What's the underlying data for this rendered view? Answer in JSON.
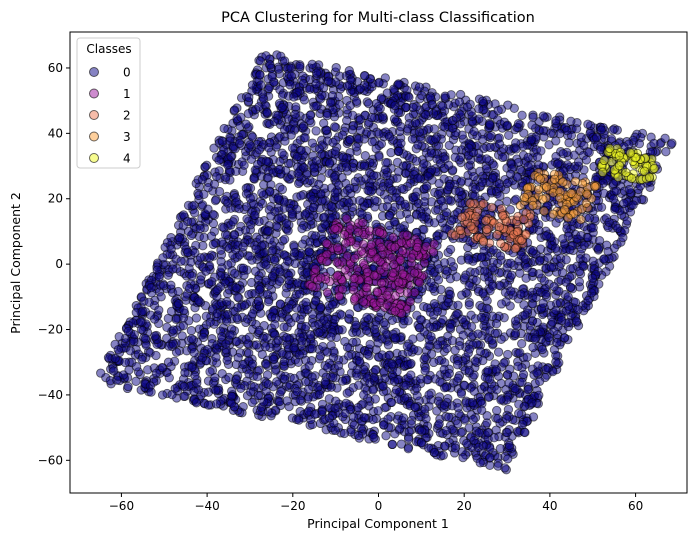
{
  "chart_data": {
    "type": "scatter",
    "title": "PCA Clustering for Multi-class Classification",
    "xlabel": "Principal Component 1",
    "ylabel": "Principal Component 2",
    "xlim": [
      -72,
      72
    ],
    "ylim": [
      -70,
      71
    ],
    "xticks": [
      -60,
      -40,
      -20,
      0,
      20,
      40,
      60
    ],
    "yticks": [
      -60,
      -40,
      -20,
      0,
      20,
      40,
      60
    ],
    "grid": false,
    "legend": {
      "title": "Classes",
      "placement": "top-left"
    },
    "marker_alpha": 0.5,
    "marker_edge_color": "#000000",
    "series": [
      {
        "name": "0",
        "color": "#0d0887",
        "region": {
          "shape": "rotated-square",
          "corners": [
            [
              -66,
              -36
            ],
            [
              -27,
              65
            ],
            [
              67,
              32
            ],
            [
              30,
              -63
            ]
          ]
        },
        "approx_count": 4500
      },
      {
        "name": "1",
        "color": "#9c179e",
        "region": {
          "shape": "rotated-rectangle",
          "corners": [
            [
              -17,
              -7
            ],
            [
              -9,
              15
            ],
            [
              13,
              8
            ],
            [
              6,
              -16
            ]
          ]
        },
        "approx_count": 280
      },
      {
        "name": "2",
        "color": "#ed7953",
        "region": {
          "shape": "rotated-rectangle",
          "corners": [
            [
              17,
              9
            ],
            [
              21,
              20
            ],
            [
              36,
              15
            ],
            [
              33,
              4
            ]
          ]
        },
        "approx_count": 90
      },
      {
        "name": "3",
        "color": "#fb9f3a",
        "region": {
          "shape": "rotated-rectangle",
          "corners": [
            [
              32,
              18
            ],
            [
              37,
              29
            ],
            [
              51,
              24
            ],
            [
              47,
              13
            ]
          ]
        },
        "approx_count": 80
      },
      {
        "name": "4",
        "color": "#f0f921",
        "region": {
          "shape": "rotated-rectangle",
          "corners": [
            [
              51,
              28
            ],
            [
              54,
              36
            ],
            [
              67,
              34
            ],
            [
              63,
              24
            ]
          ]
        },
        "approx_count": 70
      }
    ]
  }
}
